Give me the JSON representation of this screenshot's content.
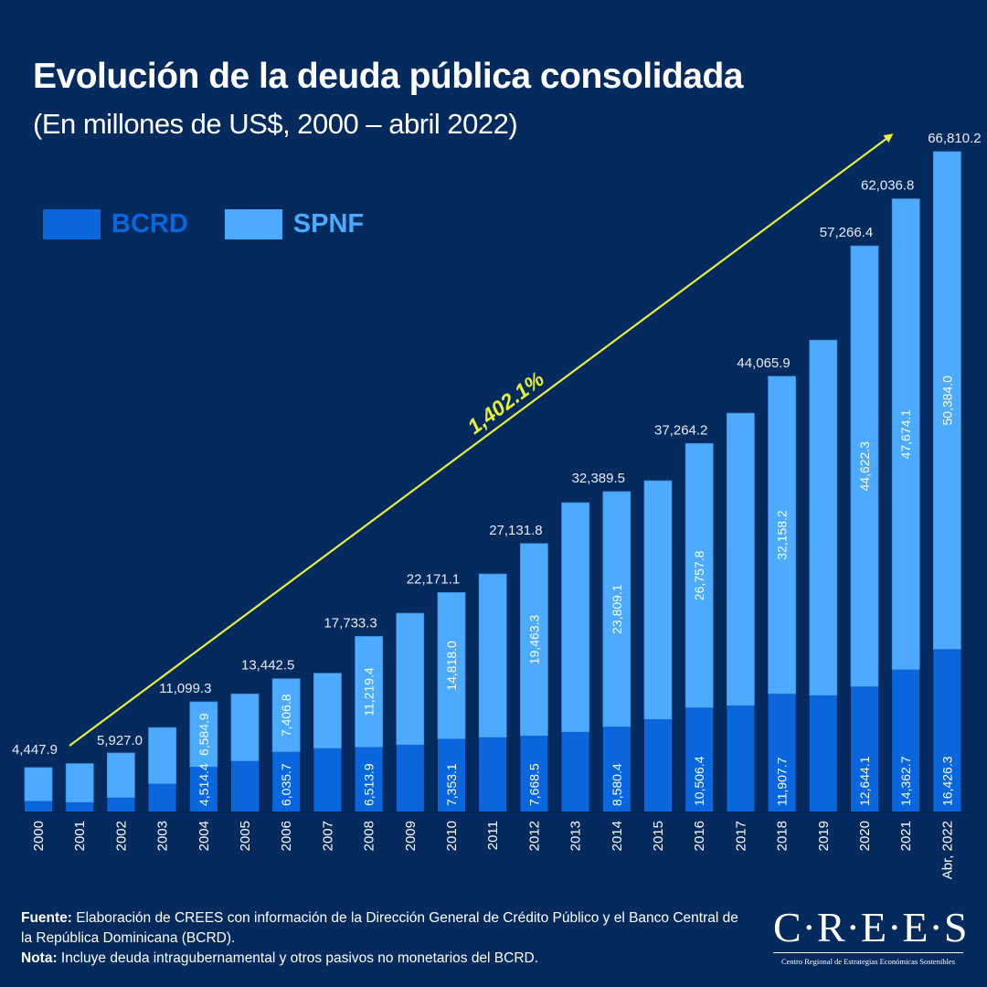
{
  "header": {
    "title": "Evolución de la deuda pública consolidada",
    "subtitle": "(En millones de US$, 2000 – abril 2022)"
  },
  "colors": {
    "background": "#042a5e",
    "bcrd": "#0a66dc",
    "spnf": "#4dabff",
    "arrow": "#e6f03a",
    "text": "#ffffff"
  },
  "chart_data": {
    "type": "bar",
    "stacked": true,
    "title": "Evolución de la deuda pública consolidada",
    "subtitle": "(En millones de US$, 2000 – abril 2022)",
    "xlabel": "",
    "ylabel": "Millones de US$",
    "ylim": [
      0,
      70000
    ],
    "grid": false,
    "legend": {
      "position": "top-left",
      "entries": [
        {
          "name": "BCRD",
          "color": "#0a66dc"
        },
        {
          "name": "SPNF",
          "color": "#4dabff"
        }
      ]
    },
    "categories": [
      "2000",
      "2001",
      "2002",
      "2003",
      "2004",
      "2005",
      "2006",
      "2007",
      "2008",
      "2009",
      "2010",
      "2011",
      "2012",
      "2013",
      "2014",
      "2015",
      "2016",
      "2017",
      "2018",
      "2019",
      "2020",
      "2021",
      "Abr, 2022"
    ],
    "series": [
      {
        "name": "BCRD",
        "color": "#0a66dc",
        "values": [
          1050,
          930,
          1400,
          2800,
          4514.4,
          5100,
          6035.7,
          6400,
          6513.9,
          6750,
          7353.1,
          7500,
          7668.5,
          8050,
          8580.4,
          9340,
          10506.4,
          10730,
          11907.7,
          11750,
          12644.1,
          14362.7,
          16426.3
        ],
        "labels": [
          null,
          null,
          null,
          null,
          "4,514.4",
          null,
          "6,035.7",
          null,
          "6,513.9",
          null,
          "7,353.1",
          null,
          "7,668.5",
          null,
          "8,580.4",
          null,
          "10,506.4",
          null,
          "11,907.7",
          null,
          "12,644.1",
          "14,362.7",
          "16,426.3"
        ]
      },
      {
        "name": "SPNF",
        "color": "#4dabff",
        "values": [
          3397.9,
          3920,
          4527.0,
          5700,
          6584.9,
          6800,
          7406.8,
          7600,
          11219.4,
          13320,
          14818.0,
          16550,
          19463.3,
          23220,
          23809.1,
          24150,
          26757.8,
          29600,
          32158.2,
          35980,
          44622.3,
          47674.1,
          50384.0
        ],
        "labels": [
          null,
          null,
          null,
          null,
          "6,584.9",
          null,
          "7,406.8",
          null,
          "11,219.4",
          null,
          "14,818.0",
          null,
          "19,463.3",
          null,
          "23,809.1",
          null,
          "26,757.8",
          null,
          "32,158.2",
          null,
          "44,622.3",
          "47,674.1",
          "50,384.0"
        ]
      }
    ],
    "totals": [
      4447.9,
      4850,
      5927.0,
      8500,
      11099.3,
      11900,
      13442.5,
      14000,
      17733.3,
      20070,
      22171.1,
      24050,
      27131.8,
      31270,
      32389.5,
      33490,
      37264.2,
      40330,
      44065.9,
      47730,
      57266.4,
      62036.8,
      66810.2
    ],
    "total_labels": [
      "4,447.9",
      null,
      "5,927.0",
      null,
      "11,099.3",
      null,
      "13,442.5",
      null,
      "17,733.3",
      null,
      "22,171.1",
      null,
      "27,131.8",
      null,
      "32,389.5",
      null,
      "37,264.2",
      null,
      "44,065.9",
      null,
      "57,266.4",
      "62,036.8",
      "66,810.2"
    ],
    "annotations": [
      {
        "type": "arrow",
        "from_category": "2000",
        "to_category": "Abr, 2022",
        "text": "1,402.1%",
        "color": "#e6f03a"
      }
    ]
  },
  "footer": {
    "source_label": "Fuente:",
    "source_text": " Elaboración de CREES con información de la Dirección General de Crédito Público y el Banco Central de la República Dominicana (BCRD).",
    "note_label": "Nota:",
    "note_text": " Incluye deuda intragubernamental y otros pasivos no monetarios del BCRD."
  },
  "logo": {
    "wordmark": "C·R·E·E·S",
    "tagline": "Centro Regional de Estrategias Económicas Sostenibles"
  }
}
